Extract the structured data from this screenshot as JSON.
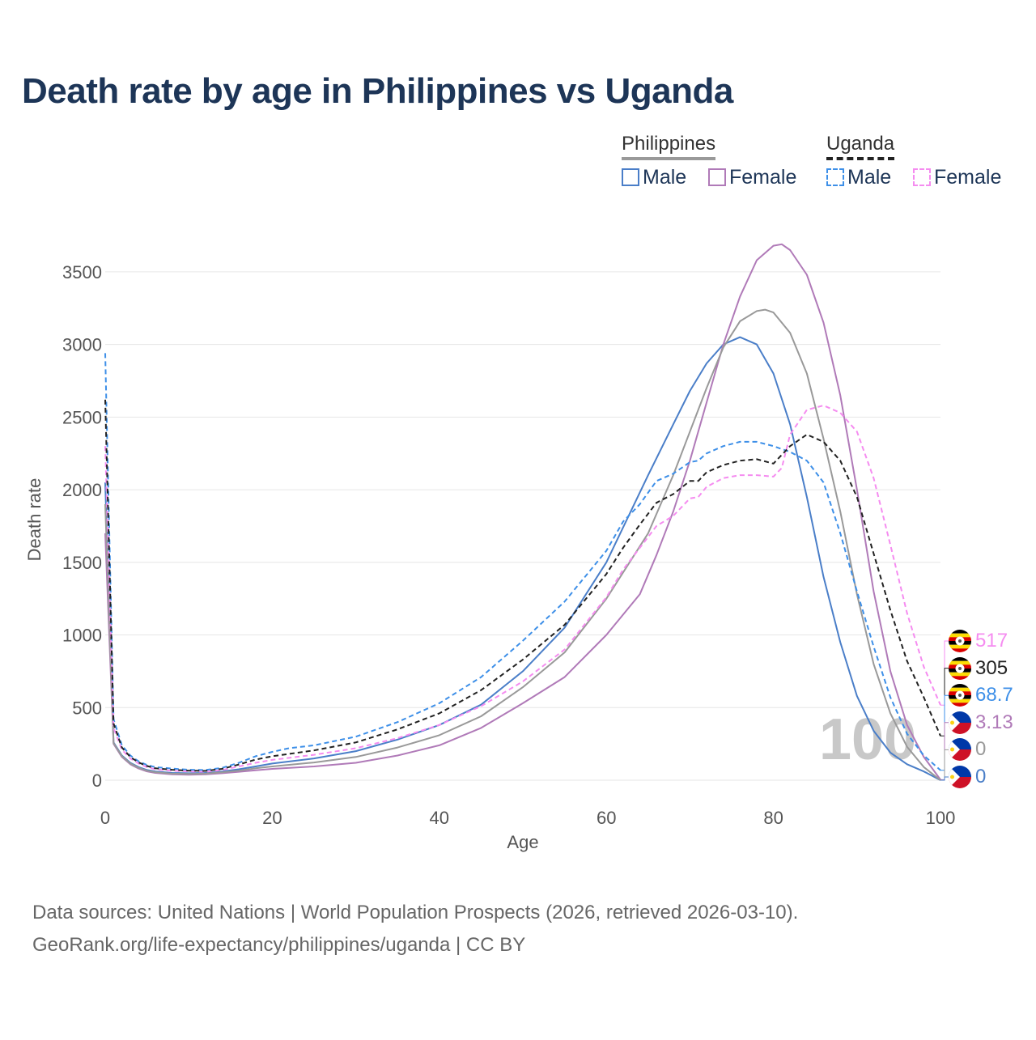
{
  "title": "Death rate by age in Philippines vs Uganda",
  "legend": {
    "groups": [
      {
        "name": "Philippines",
        "style": "solid",
        "underline_color": "#999999",
        "items": [
          {
            "label": "Male",
            "color": "#4a7ec8"
          },
          {
            "label": "Female",
            "color": "#b07ab8"
          }
        ]
      },
      {
        "name": "Uganda",
        "style": "dashed",
        "underline_color": "#222222",
        "items": [
          {
            "label": "Male",
            "color": "#3d8fe8"
          },
          {
            "label": "Female",
            "color": "#f58cf0"
          }
        ]
      }
    ]
  },
  "animation_year_label": "100",
  "footer": {
    "line1": "Data sources: United Nations | World Population Prospects (2026, retrieved 2026-03-10).",
    "line2": "GeoRank.org/life-expectancy/philippines/uganda | CC BY"
  },
  "chart_data": {
    "type": "line",
    "xlabel": "Age",
    "ylabel": "Death rate",
    "xlim": [
      0,
      100
    ],
    "ylim": [
      0,
      3700
    ],
    "xticks": [
      0,
      20,
      40,
      60,
      80,
      100
    ],
    "yticks": [
      0,
      500,
      1000,
      1500,
      2000,
      2500,
      3000,
      3500
    ],
    "grid": true,
    "series": [
      {
        "name": "Philippines Male",
        "country": "Philippines",
        "sex": "Male",
        "color": "#4a7ec8",
        "dash": false,
        "x": [
          0,
          1,
          2,
          3,
          4,
          5,
          6,
          8,
          10,
          12,
          14,
          16,
          18,
          20,
          25,
          30,
          35,
          40,
          45,
          50,
          55,
          60,
          65,
          68,
          70,
          72,
          74,
          76,
          78,
          80,
          82,
          84,
          86,
          88,
          90,
          92,
          94,
          96,
          98,
          100
        ],
        "y": [
          2050,
          260,
          170,
          120,
          90,
          70,
          60,
          50,
          48,
          50,
          60,
          75,
          95,
          115,
          150,
          200,
          280,
          380,
          520,
          750,
          1050,
          1500,
          2100,
          2450,
          2680,
          2870,
          3000,
          3050,
          3000,
          2800,
          2450,
          1950,
          1400,
          950,
          580,
          340,
          190,
          110,
          60,
          0
        ]
      },
      {
        "name": "Philippines Female",
        "country": "Philippines",
        "sex": "Female",
        "color": "#b07ab8",
        "dash": false,
        "x": [
          0,
          1,
          2,
          3,
          4,
          5,
          6,
          8,
          10,
          12,
          14,
          16,
          18,
          20,
          25,
          30,
          35,
          40,
          45,
          50,
          55,
          60,
          64,
          66,
          68,
          70,
          72,
          74,
          76,
          78,
          80,
          81,
          82,
          84,
          86,
          88,
          90,
          92,
          94,
          96,
          98,
          100
        ],
        "y": [
          1700,
          250,
          160,
          110,
          80,
          60,
          50,
          40,
          38,
          40,
          48,
          58,
          68,
          78,
          95,
          120,
          170,
          240,
          360,
          530,
          710,
          1000,
          1280,
          1550,
          1850,
          2200,
          2600,
          3000,
          3330,
          3580,
          3680,
          3690,
          3650,
          3480,
          3150,
          2650,
          2000,
          1300,
          750,
          380,
          160,
          3.13
        ]
      },
      {
        "name": "Philippines Total",
        "country": "Philippines",
        "sex": "Total",
        "color": "#999999",
        "dash": false,
        "x": [
          0,
          1,
          2,
          3,
          4,
          5,
          6,
          8,
          10,
          12,
          14,
          16,
          18,
          20,
          25,
          30,
          35,
          40,
          45,
          50,
          55,
          60,
          65,
          68,
          70,
          72,
          74,
          76,
          78,
          79,
          80,
          82,
          84,
          86,
          88,
          90,
          92,
          94,
          96,
          98,
          100
        ],
        "y": [
          1900,
          255,
          165,
          115,
          85,
          65,
          55,
          45,
          43,
          45,
          54,
          66,
          82,
          95,
          122,
          160,
          225,
          310,
          440,
          640,
          880,
          1250,
          1700,
          2100,
          2400,
          2700,
          2980,
          3160,
          3230,
          3240,
          3220,
          3080,
          2800,
          2350,
          1850,
          1280,
          800,
          460,
          230,
          90,
          0
        ]
      },
      {
        "name": "Uganda Male",
        "country": "Uganda",
        "sex": "Male",
        "color": "#3d8fe8",
        "dash": true,
        "x": [
          0,
          1,
          2,
          3,
          4,
          5,
          6,
          8,
          10,
          12,
          14,
          16,
          18,
          20,
          22,
          25,
          30,
          35,
          40,
          45,
          50,
          55,
          60,
          62,
          64,
          66,
          68,
          70,
          71,
          72,
          74,
          76,
          78,
          80,
          82,
          84,
          86,
          88,
          90,
          92,
          94,
          96,
          98,
          100
        ],
        "y": [
          2940,
          420,
          240,
          170,
          130,
          105,
          90,
          80,
          72,
          70,
          85,
          120,
          165,
          195,
          220,
          240,
          300,
          400,
          530,
          710,
          960,
          1230,
          1580,
          1780,
          1900,
          2060,
          2110,
          2190,
          2200,
          2250,
          2300,
          2330,
          2330,
          2300,
          2260,
          2200,
          2050,
          1700,
          1300,
          920,
          570,
          320,
          170,
          68.7
        ]
      },
      {
        "name": "Uganda Female",
        "country": "Uganda",
        "sex": "Female",
        "color": "#f58cf0",
        "dash": true,
        "x": [
          0,
          1,
          2,
          3,
          4,
          5,
          6,
          8,
          10,
          12,
          14,
          16,
          18,
          20,
          25,
          30,
          35,
          40,
          45,
          50,
          55,
          60,
          62,
          64,
          66,
          68,
          70,
          71,
          72,
          74,
          76,
          78,
          80,
          81,
          82,
          84,
          86,
          88,
          90,
          92,
          94,
          96,
          98,
          100
        ],
        "y": [
          2300,
          360,
          210,
          150,
          115,
          90,
          75,
          65,
          60,
          58,
          70,
          95,
          120,
          140,
          175,
          220,
          290,
          380,
          510,
          680,
          900,
          1260,
          1450,
          1600,
          1750,
          1820,
          1940,
          1950,
          2020,
          2080,
          2100,
          2100,
          2090,
          2150,
          2380,
          2550,
          2580,
          2530,
          2400,
          2080,
          1620,
          1150,
          780,
          517
        ]
      },
      {
        "name": "Uganda Total",
        "country": "Uganda",
        "sex": "Total",
        "color": "#222222",
        "dash": true,
        "x": [
          0,
          1,
          2,
          3,
          4,
          5,
          6,
          8,
          10,
          12,
          14,
          16,
          18,
          20,
          25,
          30,
          35,
          40,
          45,
          50,
          55,
          60,
          62,
          64,
          66,
          68,
          70,
          71,
          72,
          74,
          76,
          78,
          80,
          82,
          84,
          86,
          88,
          90,
          92,
          94,
          96,
          98,
          100
        ],
        "y": [
          2620,
          390,
          225,
          160,
          122,
          98,
          82,
          72,
          66,
          64,
          78,
          108,
          142,
          165,
          205,
          260,
          350,
          460,
          620,
          830,
          1070,
          1420,
          1600,
          1760,
          1910,
          1970,
          2060,
          2060,
          2120,
          2170,
          2200,
          2210,
          2180,
          2300,
          2380,
          2330,
          2200,
          1950,
          1560,
          1170,
          820,
          570,
          305
        ]
      }
    ],
    "end_labels": [
      {
        "country": "Uganda",
        "series": "Uganda Female",
        "value": "517",
        "color": "#f58cf0"
      },
      {
        "country": "Uganda",
        "series": "Uganda Total",
        "value": "305",
        "color": "#222222"
      },
      {
        "country": "Uganda",
        "series": "Uganda Male",
        "value": "68.7",
        "color": "#3d8fe8"
      },
      {
        "country": "Philippines",
        "series": "Philippines Female",
        "value": "3.13",
        "color": "#b07ab8"
      },
      {
        "country": "Philippines",
        "series": "Philippines Total",
        "value": "0",
        "color": "#999999"
      },
      {
        "country": "Philippines",
        "series": "Philippines Male",
        "value": "0",
        "color": "#4a7ec8"
      }
    ]
  }
}
